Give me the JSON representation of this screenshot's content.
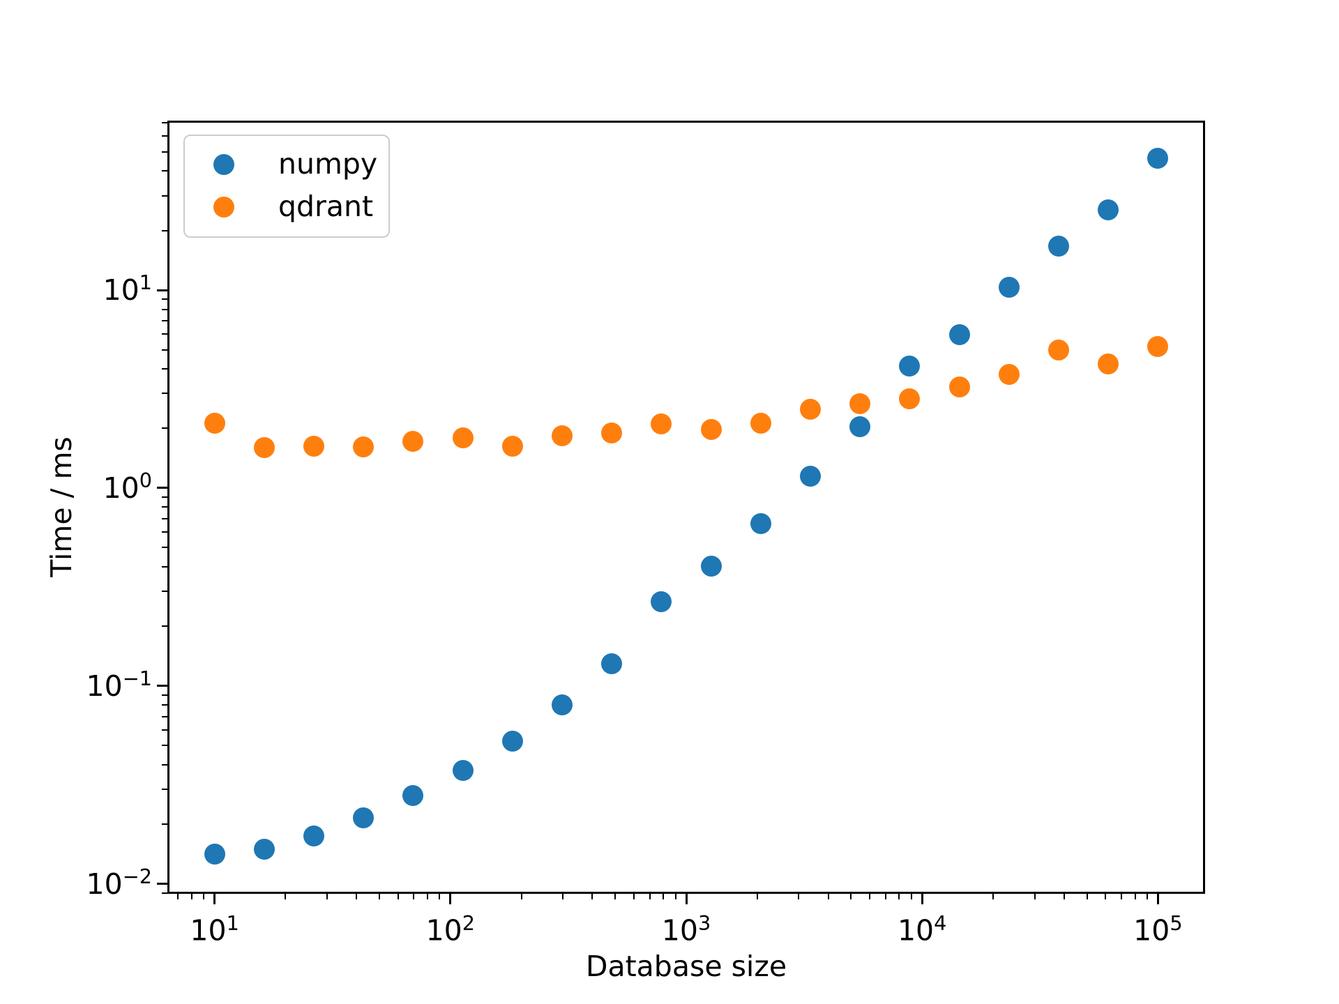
{
  "figure": {
    "background_color": "#ffffff",
    "text_color": "#000000",
    "spine_color": "#000000",
    "legend_border_color": "#cccccc"
  },
  "chart_data": {
    "type": "scatter",
    "title": "",
    "xlabel": "Database size",
    "ylabel": "Time / ms",
    "x_scale": "log",
    "y_scale": "log",
    "xlim_log10": [
      0.8,
      5.2
    ],
    "ylim_log10": [
      -2.05,
      1.856
    ],
    "x_major_tick_exponents": [
      1,
      2,
      3,
      4,
      5
    ],
    "y_major_tick_exponents": [
      -2,
      -1,
      0,
      1
    ],
    "grid": false,
    "legend": {
      "position": "upper left",
      "entries": [
        {
          "label": "numpy",
          "color": "#1f77b4"
        },
        {
          "label": "qdrant",
          "color": "#ff7f0e"
        }
      ]
    },
    "x": [
      10,
      16.24,
      26.37,
      42.81,
      69.52,
      112.88,
      183.3,
      297.64,
      483.29,
      784.76,
      1274.27,
      2069.14,
      3359.82,
      5455.59,
      8858.67,
      14384.5,
      23357.21,
      37926.9,
      61584.82,
      100000
    ],
    "series": [
      {
        "name": "numpy",
        "color": "#1f77b4",
        "values": [
          0.0141,
          0.015,
          0.0175,
          0.0216,
          0.028,
          0.0375,
          0.0527,
          0.0803,
          0.13,
          0.266,
          0.404,
          0.661,
          1.15,
          2.04,
          4.13,
          5.95,
          10.3,
          16.7,
          25.4,
          46.5
        ]
      },
      {
        "name": "qdrant",
        "color": "#ff7f0e",
        "values": [
          2.13,
          1.6,
          1.62,
          1.61,
          1.72,
          1.79,
          1.63,
          1.84,
          1.89,
          2.1,
          1.98,
          2.12,
          2.5,
          2.67,
          2.82,
          3.24,
          3.74,
          5.0,
          4.23,
          5.19
        ]
      }
    ]
  }
}
